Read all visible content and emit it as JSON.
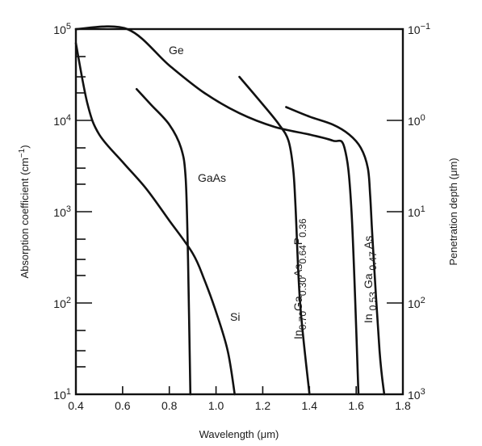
{
  "chart_data": {
    "type": "line",
    "xlabel": "Wavelength (μm)",
    "ylabel": "Absorption coefficient (cm",
    "ylabel_sup": "−1",
    "ylabel_end": ")",
    "ylabel_right": "Penetration depth (μm)",
    "x_ticks": [
      "0.4",
      "0.6",
      "0.8",
      "1.0",
      "1.2",
      "1.4",
      "1.6",
      "1.8"
    ],
    "xlim": [
      0.4,
      1.8
    ],
    "y_scale": "log",
    "ylim": [
      10,
      100000
    ],
    "y_ticks_left": [
      {
        "base": "10",
        "exp": "5"
      },
      {
        "base": "10",
        "exp": "4"
      },
      {
        "base": "10",
        "exp": "3"
      },
      {
        "base": "10",
        "exp": "2"
      },
      {
        "base": "10",
        "exp": "1"
      }
    ],
    "y_ticks_right": [
      {
        "base": "10",
        "exp": "−1"
      },
      {
        "base": "10",
        "exp": "0"
      },
      {
        "base": "10",
        "exp": "1"
      },
      {
        "base": "10",
        "exp": "2"
      },
      {
        "base": "10",
        "exp": "3"
      }
    ],
    "series": [
      {
        "name": "Ge",
        "points": [
          [
            0.4,
            100000
          ],
          [
            0.62,
            100000
          ],
          [
            0.8,
            40000
          ],
          [
            0.95,
            20000
          ],
          [
            1.1,
            12000
          ],
          [
            1.25,
            8500
          ],
          [
            1.4,
            7000
          ],
          [
            1.5,
            6000
          ],
          [
            1.55,
            5000
          ],
          [
            1.58,
            1000
          ],
          [
            1.61,
            10
          ]
        ]
      },
      {
        "name": "GaAs",
        "points": [
          [
            0.66,
            22000
          ],
          [
            0.72,
            15000
          ],
          [
            0.8,
            9000
          ],
          [
            0.85,
            5000
          ],
          [
            0.87,
            2300
          ],
          [
            0.88,
            300
          ],
          [
            0.89,
            10
          ]
        ]
      },
      {
        "name": "Si",
        "points": [
          [
            0.4,
            70000
          ],
          [
            0.45,
            15000
          ],
          [
            0.5,
            7000
          ],
          [
            0.6,
            3500
          ],
          [
            0.7,
            1800
          ],
          [
            0.8,
            800
          ],
          [
            0.9,
            350
          ],
          [
            0.95,
            180
          ],
          [
            1.0,
            80
          ],
          [
            1.05,
            30
          ],
          [
            1.08,
            10
          ]
        ]
      },
      {
        "name": "In0.70Ga0.30As0.64P0.36",
        "label_parts": [
          {
            "t": "In",
            "sub": false
          },
          {
            "t": "0.70",
            "sub": true
          },
          {
            "t": "Ga",
            "sub": false
          },
          {
            "t": "0.30",
            "sub": true
          },
          {
            "t": "As",
            "sub": false
          },
          {
            "t": "0.64",
            "sub": true
          },
          {
            "t": "P",
            "sub": false
          },
          {
            "t": "0.36",
            "sub": true
          }
        ],
        "points": [
          [
            1.1,
            30000
          ],
          [
            1.2,
            15000
          ],
          [
            1.27,
            9000
          ],
          [
            1.31,
            6000
          ],
          [
            1.33,
            3000
          ],
          [
            1.34,
            1200
          ],
          [
            1.36,
            100
          ],
          [
            1.4,
            10
          ]
        ]
      },
      {
        "name": "In0.53Ga0.47As",
        "label_parts": [
          {
            "t": "In ",
            "sub": false
          },
          {
            "t": "0.53",
            "sub": true
          },
          {
            "t": " Ga ",
            "sub": false
          },
          {
            "t": "0.47",
            "sub": true
          },
          {
            "t": " As",
            "sub": false
          }
        ],
        "points": [
          [
            1.3,
            14000
          ],
          [
            1.4,
            11000
          ],
          [
            1.5,
            9000
          ],
          [
            1.57,
            7000
          ],
          [
            1.62,
            5000
          ],
          [
            1.65,
            3000
          ],
          [
            1.66,
            1500
          ],
          [
            1.67,
            500
          ],
          [
            1.7,
            30
          ],
          [
            1.72,
            10
          ]
        ]
      }
    ]
  }
}
